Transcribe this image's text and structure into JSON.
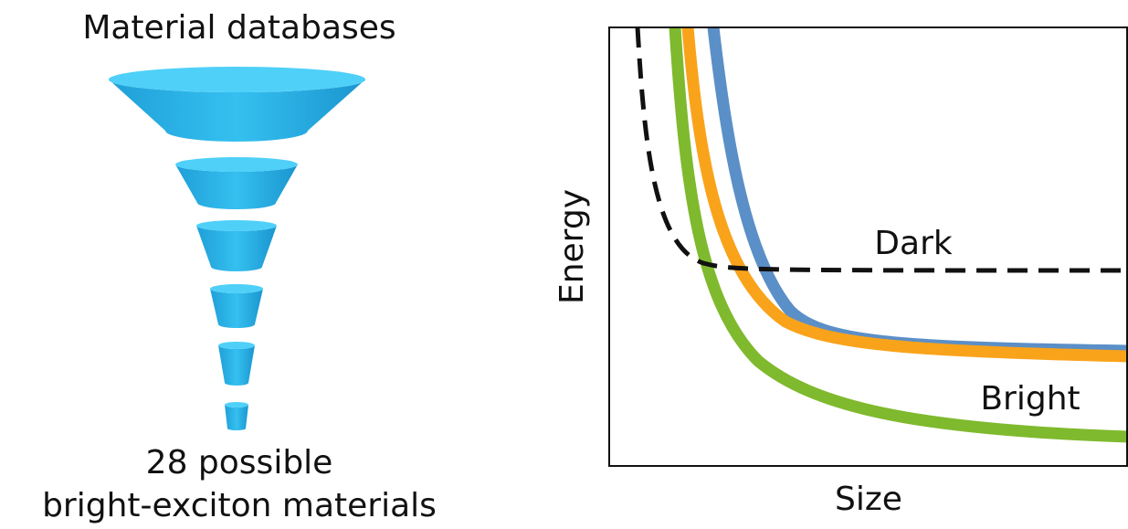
{
  "funnel": {
    "title": "Material databases",
    "caption": [
      "28 possible",
      "bright-exciton materials"
    ]
  },
  "plot": {
    "x_label": "Size",
    "y_label": "Energy",
    "labels": {
      "dark": "Dark",
      "bright": "Bright"
    }
  }
}
